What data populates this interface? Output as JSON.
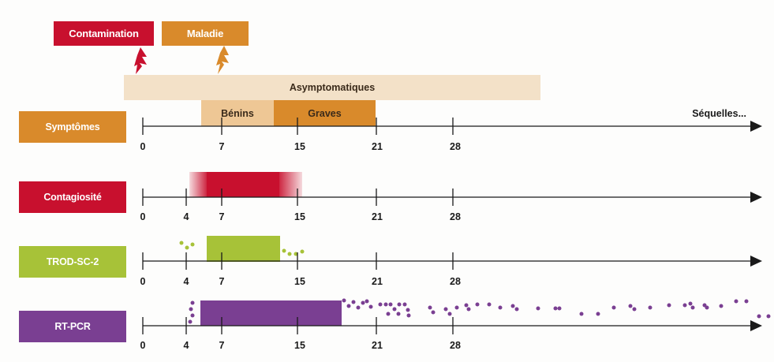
{
  "colors": {
    "contamination": "#c8102e",
    "maladie": "#d98a2b",
    "asymptomatiques": "#f3e1c8",
    "benins": "#eec795",
    "graves": "#d98a2b",
    "symptomes": "#d98a2b",
    "contagiosite": "#c8102e",
    "trod": "#a7c238",
    "rtpcr": "#7a3f92"
  },
  "events": {
    "contamination_label": "Contamination",
    "maladie_label": "Maladie",
    "contamination_icon": "lightning-icon",
    "maladie_icon": "lightning-icon"
  },
  "symptom_bands": {
    "asymptomatiques": "Asymptomatiques",
    "benins": "Bénins",
    "graves": "Graves",
    "sequelles": "Séquelles..."
  },
  "rows": [
    {
      "key": "symptomes",
      "label": "Symptômes",
      "ticks": [
        "0",
        "7",
        "15",
        "21",
        "28"
      ]
    },
    {
      "key": "contagiosite",
      "label": "Contagiosité",
      "ticks": [
        "0",
        "4",
        "7",
        "15",
        "21",
        "28"
      ]
    },
    {
      "key": "trod",
      "label": "TROD-SC-2",
      "ticks": [
        "0",
        "4",
        "7",
        "15",
        "21",
        "28"
      ]
    },
    {
      "key": "rtpcr",
      "label": "RT-PCR",
      "ticks": [
        "0",
        "4",
        "7",
        "15",
        "21",
        "28"
      ]
    }
  ]
}
